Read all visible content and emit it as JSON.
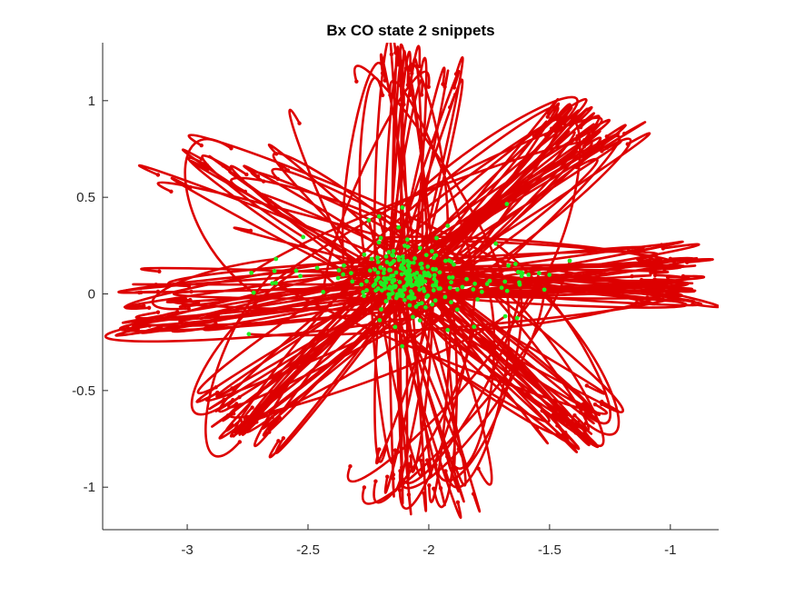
{
  "chart_data": {
    "type": "line",
    "title": "Bx  CO state 2 snippets",
    "xlabel": "",
    "ylabel": "",
    "xlim": [
      -3.35,
      -0.8
    ],
    "ylim": [
      -1.22,
      1.3
    ],
    "xticks": [
      -3,
      -2.5,
      -2,
      -1.5,
      -1
    ],
    "xtick_labels": [
      "-3",
      "-2.5",
      "-2",
      "-1.5",
      "-1"
    ],
    "yticks": [
      -1,
      -0.5,
      0,
      0.5,
      1
    ],
    "ytick_labels": [
      "-1",
      "-0.5",
      "0",
      "0.5",
      "1"
    ],
    "grid": false,
    "legend": "none",
    "colors": {
      "trajectory": "#dd0000",
      "start_marker": "#22ee22",
      "end_marker": "#dd0000"
    },
    "center": [
      -2.1,
      0.08
    ],
    "snippet_groups": [
      {
        "direction": "up",
        "tip": [
          -2.05,
          1.18
        ],
        "count": 28,
        "spread": 0.12
      },
      {
        "direction": "up-right",
        "tip": [
          -1.32,
          0.88
        ],
        "count": 40,
        "spread": 0.09
      },
      {
        "direction": "right",
        "tip": [
          -0.95,
          0.08
        ],
        "count": 42,
        "spread": 0.08
      },
      {
        "direction": "down-right",
        "tip": [
          -1.32,
          -0.68
        ],
        "count": 30,
        "spread": 0.08
      },
      {
        "direction": "down",
        "tip": [
          -2.05,
          -1.05
        ],
        "count": 34,
        "spread": 0.14
      },
      {
        "direction": "down-left",
        "tip": [
          -2.82,
          -0.68
        ],
        "count": 34,
        "spread": 0.08
      },
      {
        "direction": "left",
        "tip": [
          -3.18,
          -0.05
        ],
        "count": 28,
        "spread": 0.12
      },
      {
        "direction": "up-left",
        "tip": [
          -2.85,
          0.62
        ],
        "count": 22,
        "spread": 0.2
      }
    ]
  }
}
